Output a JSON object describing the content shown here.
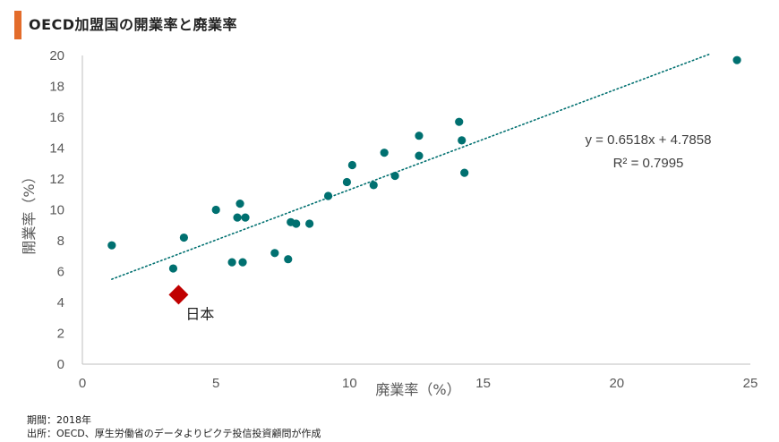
{
  "title": "OECD加盟国の開業率と廃業率",
  "chart_data": {
    "type": "scatter",
    "xlabel": "廃業率（%）",
    "ylabel": "開業率（%）",
    "xlim": [
      0,
      25
    ],
    "ylim": [
      0,
      20
    ],
    "xticks": [
      "0",
      "5",
      "10",
      "15",
      "20",
      "25"
    ],
    "yticks": [
      "0",
      "2",
      "4",
      "6",
      "8",
      "10",
      "12",
      "14",
      "16",
      "18",
      "20"
    ],
    "series": [
      {
        "color": "#007070",
        "points": [
          [
            1.1,
            7.7
          ],
          [
            3.4,
            6.2
          ],
          [
            3.8,
            8.2
          ],
          [
            5.0,
            10.0
          ],
          [
            5.6,
            6.6
          ],
          [
            5.8,
            9.5
          ],
          [
            5.9,
            10.4
          ],
          [
            6.0,
            6.6
          ],
          [
            6.1,
            9.5
          ],
          [
            7.2,
            7.2
          ],
          [
            7.7,
            6.8
          ],
          [
            7.8,
            9.2
          ],
          [
            8.0,
            9.1
          ],
          [
            8.5,
            9.1
          ],
          [
            9.2,
            10.9
          ],
          [
            9.9,
            11.8
          ],
          [
            10.1,
            12.9
          ],
          [
            10.9,
            11.6
          ],
          [
            11.3,
            13.7
          ],
          [
            11.7,
            12.2
          ],
          [
            12.6,
            14.8
          ],
          [
            12.6,
            13.5
          ],
          [
            14.1,
            15.7
          ],
          [
            14.2,
            14.5
          ],
          [
            14.3,
            12.4
          ],
          [
            24.5,
            19.7
          ]
        ]
      }
    ],
    "highlight": {
      "label": "日本",
      "x": 3.6,
      "y": 4.5,
      "color": "#c00000"
    },
    "trendline": {
      "slope": 0.6518,
      "intercept": 4.7858,
      "x_range": [
        1.1,
        23.5
      ],
      "color": "#007070",
      "equation": "y = 0.6518x + 4.7858",
      "r2_label": "R² = 0.7995"
    },
    "grid": false
  },
  "notes": {
    "period": "期間：2018年",
    "source": "出所：OECD、厚生労働省のデータよりピクテ投信投資顧問が作成"
  }
}
